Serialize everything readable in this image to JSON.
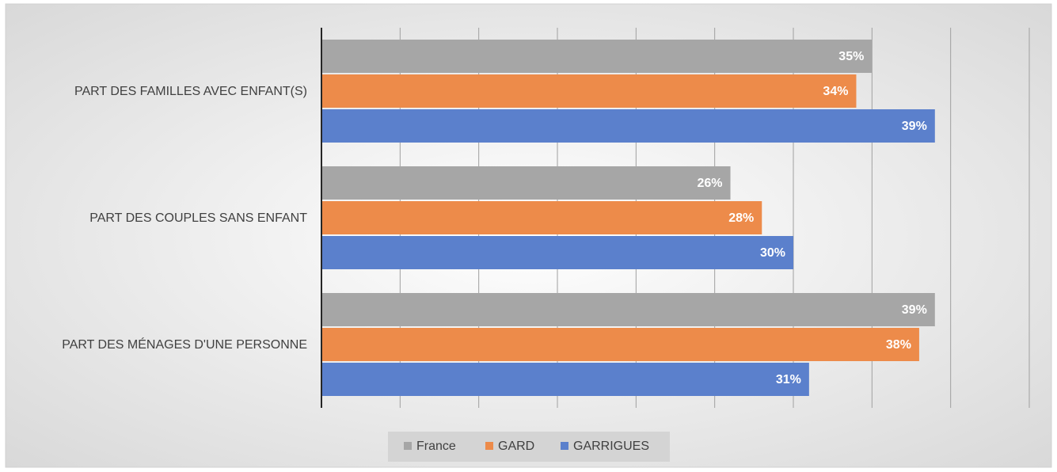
{
  "chart_data": {
    "type": "bar",
    "orientation": "horizontal",
    "categories": [
      "PART DES FAMILLES AVEC ENFANT(S)",
      "PART DES COUPLES SANS ENFANT",
      "PART DES MÉNAGES D'UNE PERSONNE"
    ],
    "series": [
      {
        "name": "France",
        "color": "#a6a6a6",
        "values": [
          35,
          26,
          39
        ],
        "value_labels": [
          "35%",
          "26%",
          "39%"
        ]
      },
      {
        "name": "GARD",
        "color": "#ed8b4a",
        "values": [
          34,
          28,
          38
        ],
        "value_labels": [
          "34%",
          "28%",
          "38%"
        ]
      },
      {
        "name": "GARRIGUES",
        "color": "#5b80cc",
        "values": [
          39,
          30,
          31
        ],
        "value_labels": [
          "39%",
          "30%",
          "31%"
        ]
      }
    ],
    "xlim": [
      0,
      45
    ],
    "xticks": [
      0,
      5,
      10,
      15,
      20,
      25,
      30,
      35,
      40,
      45
    ],
    "grid": true,
    "legend": "bottom"
  }
}
